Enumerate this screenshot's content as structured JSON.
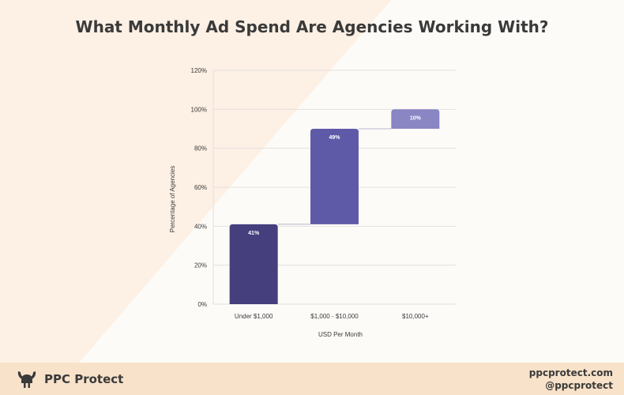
{
  "title": "What Monthly Ad Spend Are Agencies Working With?",
  "brand": {
    "name": "PPC Protect",
    "website": "ppcprotect.com",
    "handle": "@ppcprotect",
    "logo_icon": "viking-helmet-icon"
  },
  "colors": {
    "background": "#fdf0e4",
    "panel": "#fdfbf8",
    "footer": "#f8e2c9",
    "text": "#3a3a3a",
    "bars": [
      "#453f7e",
      "#5f5aa8",
      "#8a86c4"
    ],
    "connector": "#b8b6cc"
  },
  "chart_data": {
    "type": "bar",
    "subtype": "waterfall",
    "categories": [
      "Under $1,000",
      "$1,000 - $10,000",
      "$10,000+"
    ],
    "values": [
      41,
      49,
      10
    ],
    "data_labels": [
      "41%",
      "49%",
      "10%"
    ],
    "xlabel": "USD Per Month",
    "ylabel": "Percentage of Agencies",
    "ylim": [
      0,
      120
    ],
    "yticks": [
      0,
      20,
      40,
      60,
      80,
      100,
      120
    ],
    "ytick_labels": [
      "0%",
      "20%",
      "40%",
      "60%",
      "80%",
      "100%",
      "120%"
    ],
    "grid": true
  }
}
